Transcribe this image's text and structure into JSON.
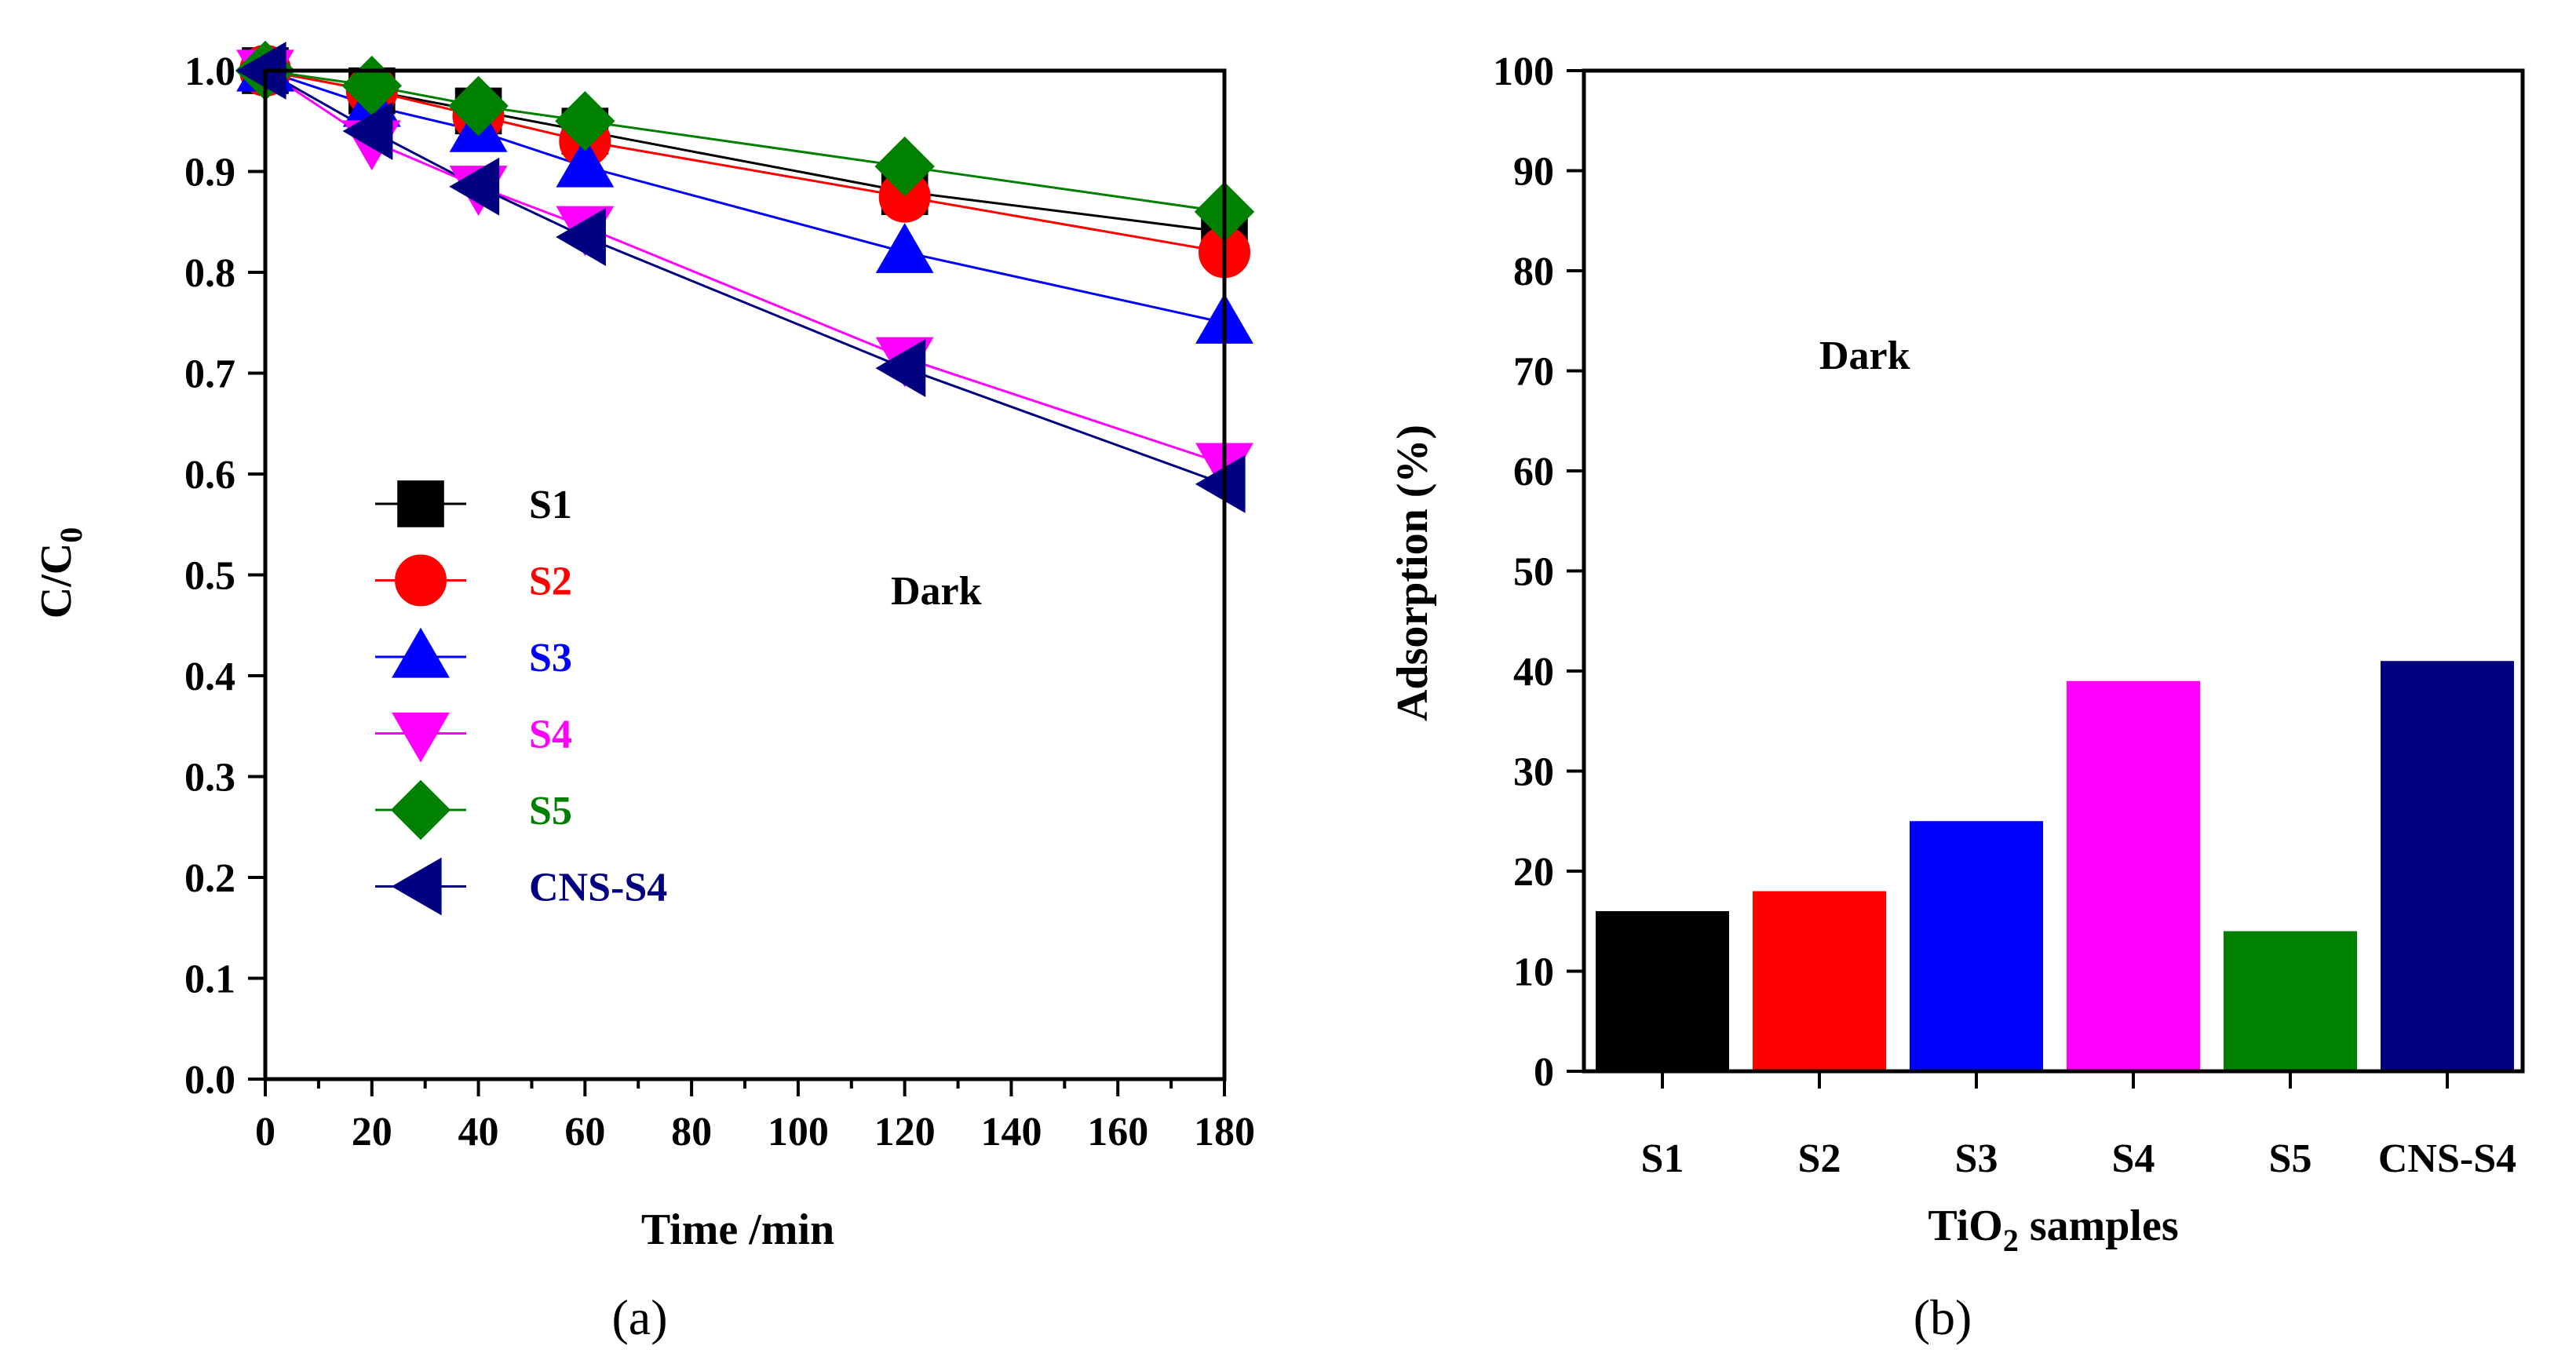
{
  "chart_data": [
    {
      "panel_label": "(a)",
      "type": "line",
      "title": "",
      "xlabel": "Time /min",
      "ylabel_main": "C/C",
      "ylabel_sub": "0",
      "xlim": [
        0,
        180
      ],
      "ylim": [
        0.0,
        1.0
      ],
      "xticks": [
        0,
        20,
        40,
        60,
        80,
        100,
        120,
        140,
        160,
        180
      ],
      "yticks": [
        "0.0",
        "0.1",
        "0.2",
        "0.3",
        "0.4",
        "0.5",
        "0.6",
        "0.7",
        "0.8",
        "0.9",
        "1.0"
      ],
      "annotation": "Dark",
      "legend_position": "center-left",
      "x": [
        0,
        20,
        40,
        60,
        120,
        180
      ],
      "series": [
        {
          "name": "S1",
          "color": "#000000",
          "marker": "square",
          "values": [
            1.0,
            0.98,
            0.96,
            0.94,
            0.88,
            0.84
          ]
        },
        {
          "name": "S2",
          "color": "#ff0000",
          "marker": "circle",
          "values": [
            1.0,
            0.98,
            0.955,
            0.93,
            0.875,
            0.82
          ]
        },
        {
          "name": "S3",
          "color": "#0000ff",
          "marker": "triangle-up",
          "values": [
            1.0,
            0.965,
            0.94,
            0.905,
            0.82,
            0.75
          ]
        },
        {
          "name": "S4",
          "color": "#ff00ff",
          "marker": "triangle-down",
          "values": [
            1.0,
            0.93,
            0.885,
            0.845,
            0.715,
            0.61
          ]
        },
        {
          "name": "S5",
          "color": "#008000",
          "marker": "diamond",
          "values": [
            1.0,
            0.985,
            0.965,
            0.95,
            0.905,
            0.86
          ]
        },
        {
          "name": "CNS-S4",
          "color": "#000080",
          "marker": "triangle-left",
          "values": [
            1.0,
            0.94,
            0.885,
            0.835,
            0.705,
            0.59
          ]
        }
      ]
    },
    {
      "panel_label": "(b)",
      "type": "bar",
      "title": "",
      "xlabel_main": "TiO",
      "xlabel_sub": "2",
      "xlabel_tail": " samples",
      "ylabel": "Adsorption (%)",
      "ylim": [
        0,
        100
      ],
      "yticks": [
        0,
        10,
        20,
        30,
        40,
        50,
        60,
        70,
        80,
        90,
        100
      ],
      "annotation": "Dark",
      "categories": [
        "S1",
        "S2",
        "S3",
        "S4",
        "S5",
        "CNS-S4"
      ],
      "values": [
        16,
        18,
        25,
        39,
        14,
        41
      ],
      "colors": [
        "#000000",
        "#ff0000",
        "#0000ff",
        "#ff00ff",
        "#008000",
        "#000080"
      ]
    }
  ]
}
